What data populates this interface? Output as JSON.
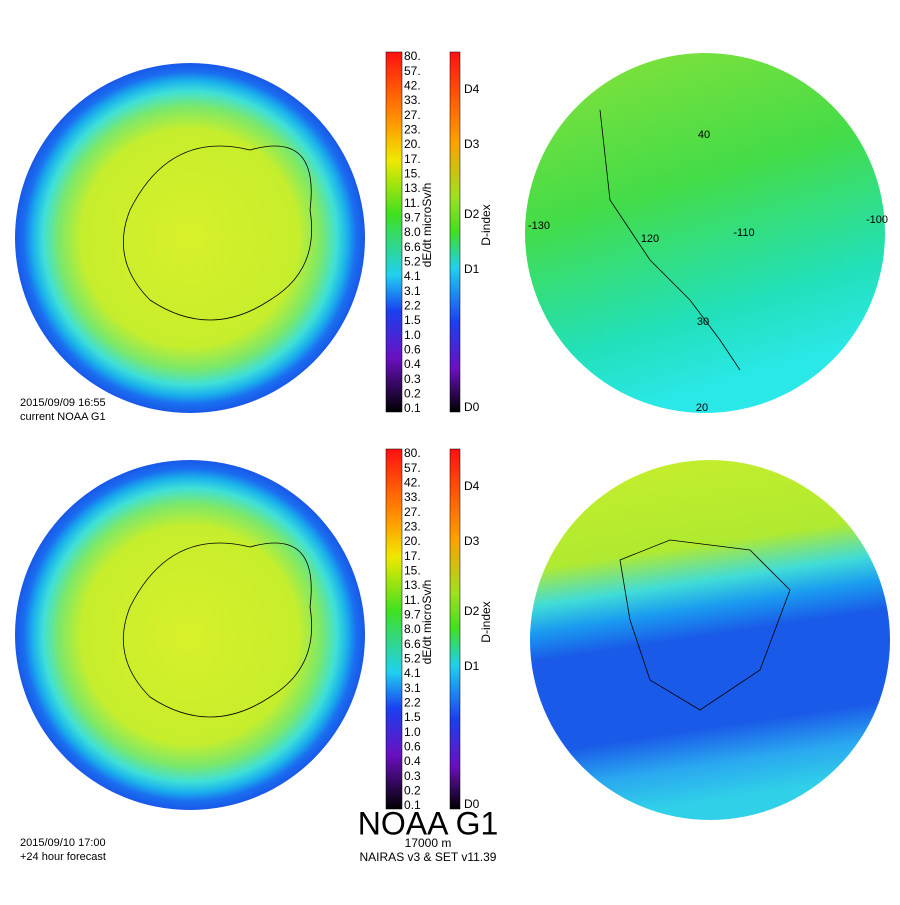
{
  "panels": [
    {
      "timestamp": "2015/09/09 16:55",
      "label": "current NOAA G1",
      "dose_scale": {
        "title": "dE/dt microSv/h",
        "labels": [
          "80.",
          "57.",
          "42.",
          "33.",
          "27.",
          "23.",
          "20.",
          "17.",
          "15.",
          "13.",
          "11.",
          "9.7",
          "8.0",
          "6.6",
          "5.2",
          "4.1",
          "3.1",
          "2.2",
          "1.5",
          "1.0",
          "0.6",
          "0.4",
          "0.3",
          "0.2",
          "0.1"
        ]
      },
      "d_scale": {
        "title": "D-index",
        "labels": [
          "D4",
          "D3",
          "D2",
          "D1",
          "D0"
        ]
      },
      "map_labels": [
        "40",
        "-130",
        "120",
        "-110",
        "-100",
        "30",
        "20"
      ]
    },
    {
      "timestamp": "2015/09/10 17:00",
      "label": "+24 hour forecast",
      "dose_scale": {
        "title": "dE/dt microSv/h",
        "labels": [
          "80.",
          "57.",
          "42.",
          "33.",
          "27.",
          "23.",
          "20.",
          "17.",
          "15.",
          "13.",
          "11.",
          "9.7",
          "8.0",
          "6.6",
          "5.2",
          "4.1",
          "3.1",
          "2.2",
          "1.5",
          "1.0",
          "0.6",
          "0.4",
          "0.3",
          "0.2",
          "0.1"
        ]
      },
      "d_scale": {
        "title": "D-index",
        "labels": [
          "D4",
          "D3",
          "D2",
          "D1",
          "D0"
        ]
      }
    }
  ],
  "footer": {
    "title": "NOAA G1",
    "altitude": "17000 m",
    "version": "NAIRAS v3 & SET v11.39"
  }
}
